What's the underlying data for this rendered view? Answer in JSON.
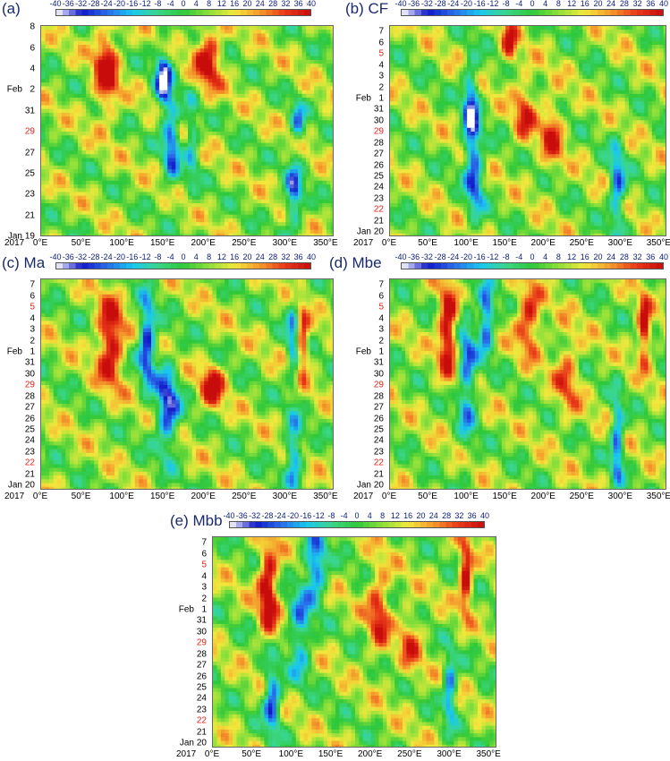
{
  "colorbar": {
    "ticks": [
      "-40",
      "-36",
      "-32",
      "-28",
      "-24",
      "-20",
      "-16",
      "-12",
      "-8",
      "-4",
      "0",
      "4",
      "8",
      "12",
      "16",
      "20",
      "24",
      "28",
      "32",
      "36",
      "40"
    ],
    "min": -40,
    "max": 40,
    "colors": [
      "#ffffff",
      "#1018c8",
      "#2a6be8",
      "#18c8f0",
      "#3cd68a",
      "#2ec83a",
      "#8ce03a",
      "#f2e83c",
      "#f49a2c",
      "#e83818",
      "#c80c0c"
    ]
  },
  "year_label": "2017",
  "chart_data": [
    {
      "type": "heatmap",
      "panel_label": "(a)",
      "x_ticks": [
        "0°E",
        "50°E",
        "100°E",
        "150°E",
        "200°E",
        "250°E",
        "300°E",
        "350°E"
      ],
      "xlim": [
        0,
        360
      ],
      "y_label_left": "Jan",
      "y_ticks": [
        {
          "label": "8",
          "day": 39,
          "red": false
        },
        {
          "label": "6",
          "day": 37,
          "red": false
        },
        {
          "label": "4",
          "day": 35,
          "red": false
        },
        {
          "label": "2",
          "day": 33,
          "red": false
        },
        {
          "label": "31",
          "day": 31,
          "red": false
        },
        {
          "label": "29",
          "day": 29,
          "red": true
        },
        {
          "label": "27",
          "day": 27,
          "red": false
        },
        {
          "label": "25",
          "day": 25,
          "red": false
        },
        {
          "label": "23",
          "day": 23,
          "red": false
        },
        {
          "label": "21",
          "day": 21,
          "red": false
        },
        {
          "label": "19",
          "day": 19,
          "red": false
        }
      ],
      "feb_day": 33,
      "ylim": [
        19,
        39.2
      ],
      "features": [
        {
          "lon": 80,
          "day": 35,
          "val": 34,
          "wl": 14,
          "wd": 4
        },
        {
          "lon": 150,
          "day": 34,
          "val": -38,
          "wl": 10,
          "wd": 3
        },
        {
          "lon": 160,
          "day": 28,
          "val": -30,
          "wl": 10,
          "wd": 4
        },
        {
          "lon": 185,
          "day": 28,
          "val": -20,
          "wl": 8,
          "wd": 4
        },
        {
          "lon": 205,
          "day": 36,
          "val": 30,
          "wl": 16,
          "wd": 3
        },
        {
          "lon": 310,
          "day": 23,
          "val": -32,
          "wl": 10,
          "wd": 3
        },
        {
          "lon": 315,
          "day": 30,
          "val": -24,
          "wl": 8,
          "wd": 2
        }
      ]
    },
    {
      "type": "heatmap",
      "panel_label": "(b) CF",
      "x_ticks": [
        "0°E",
        "50°E",
        "100°E",
        "150°E",
        "200°E",
        "250°E",
        "300°E",
        "350°E"
      ],
      "xlim": [
        0,
        360
      ],
      "y_label_left": "Jan",
      "y_ticks": [
        {
          "label": "7",
          "day": 38,
          "red": false
        },
        {
          "label": "6",
          "day": 37,
          "red": false
        },
        {
          "label": "5",
          "day": 36,
          "red": true
        },
        {
          "label": "4",
          "day": 35,
          "red": false
        },
        {
          "label": "3",
          "day": 34,
          "red": false
        },
        {
          "label": "2",
          "day": 33,
          "red": false
        },
        {
          "label": "1",
          "day": 32,
          "red": false
        },
        {
          "label": "31",
          "day": 31,
          "red": false
        },
        {
          "label": "30",
          "day": 30,
          "red": false
        },
        {
          "label": "29",
          "day": 29,
          "red": true
        },
        {
          "label": "28",
          "day": 28,
          "red": false
        },
        {
          "label": "27",
          "day": 27,
          "red": false
        },
        {
          "label": "26",
          "day": 26,
          "red": false
        },
        {
          "label": "25",
          "day": 25,
          "red": false
        },
        {
          "label": "24",
          "day": 24,
          "red": false
        },
        {
          "label": "23",
          "day": 23,
          "red": false
        },
        {
          "label": "22",
          "day": 22,
          "red": true
        },
        {
          "label": "21",
          "day": 21,
          "red": false
        },
        {
          "label": "20",
          "day": 20,
          "red": false
        }
      ],
      "feb_day": 32,
      "ylim": [
        19.6,
        38.6
      ],
      "features": [
        {
          "lon": 105,
          "day": 31,
          "val": -36,
          "wl": 10,
          "wd": 4
        },
        {
          "lon": 110,
          "day": 25,
          "val": -28,
          "wl": 12,
          "wd": 4
        },
        {
          "lon": 155,
          "day": 37,
          "val": 26,
          "wl": 10,
          "wd": 2
        },
        {
          "lon": 175,
          "day": 31,
          "val": 22,
          "wl": 14,
          "wd": 3
        },
        {
          "lon": 210,
          "day": 29,
          "val": 24,
          "wl": 14,
          "wd": 3
        },
        {
          "lon": 295,
          "day": 24,
          "val": -30,
          "wl": 10,
          "wd": 4
        }
      ]
    },
    {
      "type": "heatmap",
      "panel_label": "(c) Ma",
      "x_ticks": [
        "0°E",
        "50°E",
        "100°E",
        "150°E",
        "200°E",
        "250°E",
        "300°E",
        "350°E"
      ],
      "xlim": [
        0,
        360
      ],
      "y_label_left": "Jan",
      "y_ticks": [
        {
          "label": "7",
          "day": 38,
          "red": false
        },
        {
          "label": "6",
          "day": 37,
          "red": false
        },
        {
          "label": "5",
          "day": 36,
          "red": true
        },
        {
          "label": "4",
          "day": 35,
          "red": false
        },
        {
          "label": "3",
          "day": 34,
          "red": false
        },
        {
          "label": "2",
          "day": 33,
          "red": false
        },
        {
          "label": "1",
          "day": 32,
          "red": false
        },
        {
          "label": "31",
          "day": 31,
          "red": false
        },
        {
          "label": "30",
          "day": 30,
          "red": false
        },
        {
          "label": "29",
          "day": 29,
          "red": true
        },
        {
          "label": "28",
          "day": 28,
          "red": false
        },
        {
          "label": "27",
          "day": 27,
          "red": false
        },
        {
          "label": "26",
          "day": 26,
          "red": false
        },
        {
          "label": "25",
          "day": 25,
          "red": false
        },
        {
          "label": "24",
          "day": 24,
          "red": false
        },
        {
          "label": "23",
          "day": 23,
          "red": false
        },
        {
          "label": "22",
          "day": 22,
          "red": true
        },
        {
          "label": "21",
          "day": 21,
          "red": false
        },
        {
          "label": "20",
          "day": 20,
          "red": false
        }
      ],
      "feb_day": 32,
      "ylim": [
        19.6,
        38.6
      ],
      "features": [
        {
          "lon": 85,
          "day": 33,
          "val": 34,
          "wl": 16,
          "wd": 4
        },
        {
          "lon": 130,
          "day": 33,
          "val": -38,
          "wl": 10,
          "wd": 4
        },
        {
          "lon": 155,
          "day": 27,
          "val": -36,
          "wl": 14,
          "wd": 4
        },
        {
          "lon": 210,
          "day": 29,
          "val": 30,
          "wl": 14,
          "wd": 2
        },
        {
          "lon": 310,
          "day": 33,
          "val": -26,
          "wl": 8,
          "wd": 4
        },
        {
          "lon": 320,
          "day": 33,
          "val": 32,
          "wl": 8,
          "wd": 3
        },
        {
          "lon": 310,
          "day": 23,
          "val": -30,
          "wl": 10,
          "wd": 3
        }
      ]
    },
    {
      "type": "heatmap",
      "panel_label": "(d) Mbe",
      "x_ticks": [
        "0°E",
        "50°E",
        "100°E",
        "150°E",
        "200°E",
        "250°E",
        "300°E",
        "350°E"
      ],
      "xlim": [
        0,
        360
      ],
      "y_label_left": "Jan",
      "y_ticks": [
        {
          "label": "7",
          "day": 38,
          "red": false
        },
        {
          "label": "6",
          "day": 37,
          "red": false
        },
        {
          "label": "5",
          "day": 36,
          "red": true
        },
        {
          "label": "4",
          "day": 35,
          "red": false
        },
        {
          "label": "3",
          "day": 34,
          "red": false
        },
        {
          "label": "2",
          "day": 33,
          "red": false
        },
        {
          "label": "1",
          "day": 32,
          "red": false
        },
        {
          "label": "31",
          "day": 31,
          "red": false
        },
        {
          "label": "30",
          "day": 30,
          "red": false
        },
        {
          "label": "29",
          "day": 29,
          "red": true
        },
        {
          "label": "28",
          "day": 28,
          "red": false
        },
        {
          "label": "27",
          "day": 27,
          "red": false
        },
        {
          "label": "26",
          "day": 26,
          "red": false
        },
        {
          "label": "25",
          "day": 25,
          "red": false
        },
        {
          "label": "24",
          "day": 24,
          "red": false
        },
        {
          "label": "23",
          "day": 23,
          "red": false
        },
        {
          "label": "22",
          "day": 22,
          "red": true
        },
        {
          "label": "21",
          "day": 21,
          "red": false
        },
        {
          "label": "20",
          "day": 20,
          "red": false
        }
      ],
      "feb_day": 32,
      "ylim": [
        19.6,
        38.6
      ],
      "features": [
        {
          "lon": 75,
          "day": 34,
          "val": 36,
          "wl": 12,
          "wd": 4
        },
        {
          "lon": 100,
          "day": 30,
          "val": -28,
          "wl": 12,
          "wd": 6
        },
        {
          "lon": 125,
          "day": 35,
          "val": -36,
          "wl": 10,
          "wd": 3
        },
        {
          "lon": 180,
          "day": 35,
          "val": 28,
          "wl": 16,
          "wd": 3
        },
        {
          "lon": 230,
          "day": 30,
          "val": 18,
          "wl": 16,
          "wd": 4
        },
        {
          "lon": 295,
          "day": 24,
          "val": -32,
          "wl": 8,
          "wd": 4
        },
        {
          "lon": 330,
          "day": 34,
          "val": 34,
          "wl": 8,
          "wd": 3
        }
      ]
    },
    {
      "type": "heatmap",
      "panel_label": "(e) Mbb",
      "x_ticks": [
        "0°E",
        "50°E",
        "100°E",
        "150°E",
        "200°E",
        "250°E",
        "300°E",
        "350°E"
      ],
      "xlim": [
        0,
        360
      ],
      "y_label_left": "Jan",
      "y_ticks": [
        {
          "label": "7",
          "day": 38,
          "red": false
        },
        {
          "label": "6",
          "day": 37,
          "red": false
        },
        {
          "label": "5",
          "day": 36,
          "red": true
        },
        {
          "label": "4",
          "day": 35,
          "red": false
        },
        {
          "label": "3",
          "day": 34,
          "red": false
        },
        {
          "label": "2",
          "day": 33,
          "red": false
        },
        {
          "label": "1",
          "day": 32,
          "red": false
        },
        {
          "label": "31",
          "day": 31,
          "red": false
        },
        {
          "label": "30",
          "day": 30,
          "red": false
        },
        {
          "label": "29",
          "day": 29,
          "red": true
        },
        {
          "label": "28",
          "day": 28,
          "red": false
        },
        {
          "label": "27",
          "day": 27,
          "red": false
        },
        {
          "label": "26",
          "day": 26,
          "red": false
        },
        {
          "label": "25",
          "day": 25,
          "red": false
        },
        {
          "label": "24",
          "day": 24,
          "red": false
        },
        {
          "label": "23",
          "day": 23,
          "red": false
        },
        {
          "label": "22",
          "day": 22,
          "red": true
        },
        {
          "label": "21",
          "day": 21,
          "red": false
        },
        {
          "label": "20",
          "day": 20,
          "red": false
        }
      ],
      "feb_day": 32,
      "ylim": [
        19.6,
        38.6
      ],
      "features": [
        {
          "lon": 70,
          "day": 34,
          "val": 36,
          "wl": 12,
          "wd": 4
        },
        {
          "lon": 75,
          "day": 24,
          "val": -36,
          "wl": 10,
          "wd": 3
        },
        {
          "lon": 130,
          "day": 36,
          "val": -34,
          "wl": 14,
          "wd": 3
        },
        {
          "lon": 110,
          "day": 30,
          "val": -26,
          "wl": 14,
          "wd": 4
        },
        {
          "lon": 210,
          "day": 32,
          "val": 24,
          "wl": 14,
          "wd": 4
        },
        {
          "lon": 250,
          "day": 29,
          "val": 18,
          "wl": 14,
          "wd": 3
        },
        {
          "lon": 300,
          "day": 25,
          "val": -32,
          "wl": 8,
          "wd": 3
        },
        {
          "lon": 320,
          "day": 35,
          "val": 36,
          "wl": 8,
          "wd": 3
        }
      ]
    }
  ]
}
